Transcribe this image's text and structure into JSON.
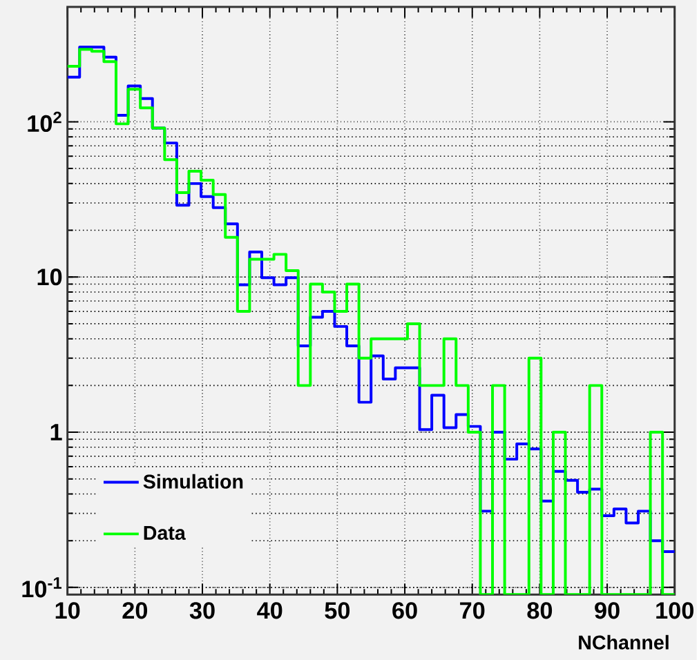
{
  "chart_data": {
    "type": "histogram",
    "xlabel": "NChannel",
    "bins": [
      10,
      11.8,
      13.6,
      15.4,
      17.2,
      19,
      20.8,
      22.6,
      24.4,
      26.2,
      28,
      29.8,
      31.6,
      33.4,
      35.2,
      37,
      38.8,
      40.6,
      42.4,
      44.2,
      46,
      47.8,
      49.6,
      51.4,
      53.2,
      55,
      56.8,
      58.6,
      60.4,
      62.2,
      64,
      65.8,
      67.6,
      69.4,
      71.2,
      73,
      74.8,
      76.6,
      78.4,
      80.2,
      82,
      83.8,
      85.6,
      87.4,
      89.2,
      91,
      92.8,
      94.6,
      96.4,
      98.2,
      100
    ],
    "series": [
      {
        "name": "Simulation",
        "color": "#0000ff",
        "values": [
          194,
          303,
          303,
          261,
          110,
          170,
          141,
          91,
          73,
          29,
          40,
          33,
          28,
          22,
          8.9,
          14.5,
          9.9,
          8.9,
          9.9,
          3.6,
          5.5,
          6.0,
          4.8,
          3.6,
          1.56,
          3.1,
          2.2,
          2.6,
          2.6,
          1.04,
          1.73,
          1.07,
          1.3,
          1.09,
          0.31,
          1.0,
          0.67,
          0.84,
          0.78,
          0.36,
          0.56,
          0.49,
          0.41,
          0.43,
          0.29,
          0.32,
          0.26,
          0.31,
          0.2,
          0.17
        ]
      },
      {
        "name": "Data",
        "color": "#00ff00",
        "values": [
          228,
          293,
          285,
          244,
          97,
          162,
          123,
          91,
          57,
          35,
          48,
          42,
          34,
          18,
          6,
          13,
          13,
          14,
          11,
          2,
          9,
          8,
          6,
          9,
          3,
          4,
          4,
          4,
          5,
          2,
          2,
          4,
          2,
          1,
          null,
          2,
          null,
          null,
          3,
          null,
          1,
          null,
          null,
          2,
          null,
          null,
          null,
          null,
          1,
          null
        ]
      }
    ],
    "xlim": [
      10,
      100
    ],
    "ylim": [
      0.09,
      550
    ],
    "xticks": [
      10,
      20,
      30,
      40,
      50,
      60,
      70,
      80,
      90,
      100
    ],
    "yticks": [
      {
        "value": 0.1,
        "label": "10$^{-1}$"
      },
      1,
      10,
      {
        "value": 100,
        "label": "10$^{2}$"
      }
    ],
    "log": "y",
    "grid": true,
    "legend": "bottom left"
  }
}
